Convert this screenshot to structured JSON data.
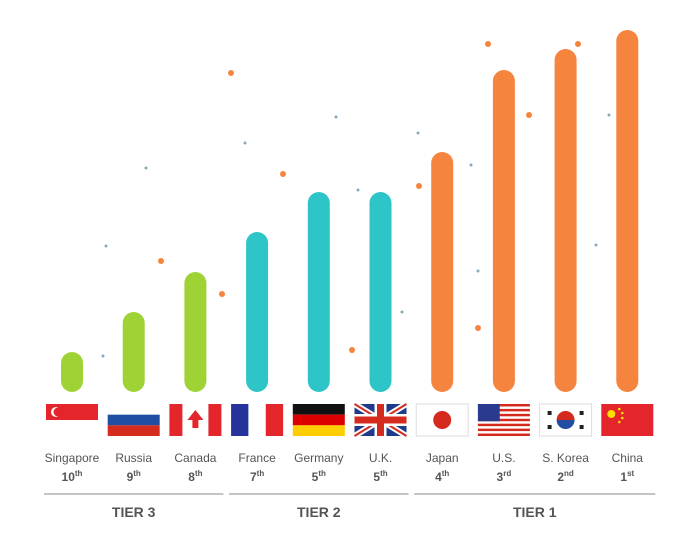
{
  "chart_data": {
    "type": "bar",
    "series": [
      {
        "name": "TIER 3",
        "color": "#9fd234",
        "categories": [
          "Singapore",
          "Russia",
          "Canada"
        ],
        "values": [
          40,
          80,
          120
        ],
        "ranks": [
          {
            "number": "10",
            "suffix": "th"
          },
          {
            "number": "9",
            "suffix": "th"
          },
          {
            "number": "8",
            "suffix": "th"
          }
        ]
      },
      {
        "name": "TIER 2",
        "color": "#2ec5c8",
        "categories": [
          "France",
          "Germany",
          "U.K."
        ],
        "values": [
          160,
          200,
          200
        ],
        "ranks": [
          {
            "number": "7",
            "suffix": "th"
          },
          {
            "number": "5",
            "suffix": "th"
          },
          {
            "number": "5",
            "suffix": "th"
          }
        ]
      },
      {
        "name": "TIER 1",
        "color": "#f5843e",
        "categories": [
          "Japan",
          "U.S.",
          "S. Korea",
          "China"
        ],
        "values": [
          240,
          322,
          343,
          362
        ],
        "ranks": [
          {
            "number": "4",
            "suffix": "th"
          },
          {
            "number": "3",
            "suffix": "rd"
          },
          {
            "number": "2",
            "suffix": "nd"
          },
          {
            "number": "1",
            "suffix": "st"
          }
        ]
      }
    ]
  }
}
